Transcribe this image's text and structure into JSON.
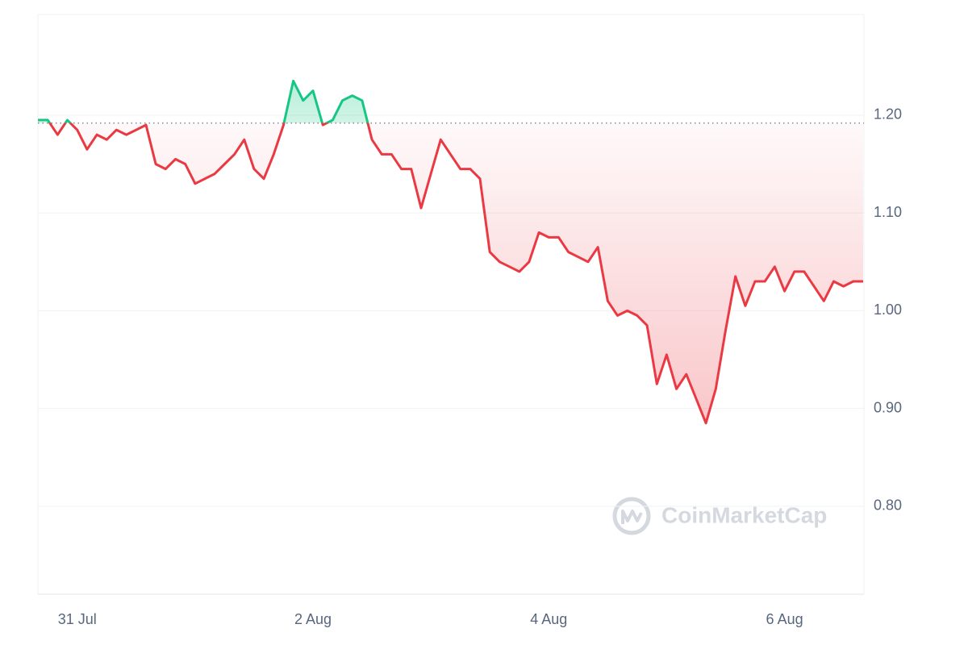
{
  "chart_data": {
    "type": "line",
    "watermark": "CoinMarketCap",
    "categories": [
      null,
      null,
      null,
      null,
      "31 Jul",
      null,
      null,
      null,
      null,
      null,
      null,
      null,
      null,
      null,
      null,
      null,
      null,
      null,
      null,
      null,
      null,
      null,
      null,
      null,
      null,
      null,
      null,
      null,
      "2 Aug",
      null,
      null,
      null,
      null,
      null,
      null,
      null,
      null,
      null,
      null,
      null,
      null,
      null,
      null,
      null,
      null,
      null,
      null,
      null,
      null,
      null,
      null,
      null,
      "4 Aug",
      null,
      null,
      null,
      null,
      null,
      null,
      null,
      null,
      null,
      null,
      null,
      null,
      null,
      null,
      null,
      null,
      null,
      null,
      null,
      null,
      null,
      null,
      null,
      "6 Aug",
      null,
      null,
      null,
      null,
      null,
      null,
      null,
      null
    ],
    "values": [
      1.195,
      1.195,
      1.18,
      1.195,
      1.185,
      1.165,
      1.18,
      1.175,
      1.185,
      1.18,
      1.185,
      1.19,
      1.15,
      1.145,
      1.155,
      1.15,
      1.13,
      1.135,
      1.14,
      1.15,
      1.16,
      1.175,
      1.145,
      1.135,
      1.16,
      1.19,
      1.235,
      1.215,
      1.225,
      1.19,
      1.195,
      1.215,
      1.22,
      1.215,
      1.175,
      1.16,
      1.16,
      1.145,
      1.145,
      1.105,
      1.14,
      1.175,
      1.16,
      1.145,
      1.145,
      1.135,
      1.06,
      1.05,
      1.045,
      1.04,
      1.05,
      1.08,
      1.075,
      1.075,
      1.06,
      1.055,
      1.05,
      1.065,
      1.01,
      0.995,
      1.0,
      0.995,
      0.985,
      0.925,
      0.955,
      0.92,
      0.935,
      0.91,
      0.885,
      0.92,
      0.98,
      1.035,
      1.005,
      1.03,
      1.03,
      1.045,
      1.02,
      1.04,
      1.04,
      1.025,
      1.01,
      1.03,
      1.025,
      1.03,
      1.03
    ],
    "reference_line": 1.192,
    "colors": {
      "above": "#16c784",
      "below": "#ea3943"
    },
    "ylim": [
      0.71,
      1.303
    ],
    "yticks": [
      {
        "value": 0.8,
        "label": "0.80"
      },
      {
        "value": 0.9,
        "label": "0.90"
      },
      {
        "value": 1.0,
        "label": "1.00"
      },
      {
        "value": 1.1,
        "label": "1.10"
      },
      {
        "value": 1.2,
        "label": "1.20"
      }
    ],
    "grid": true
  }
}
